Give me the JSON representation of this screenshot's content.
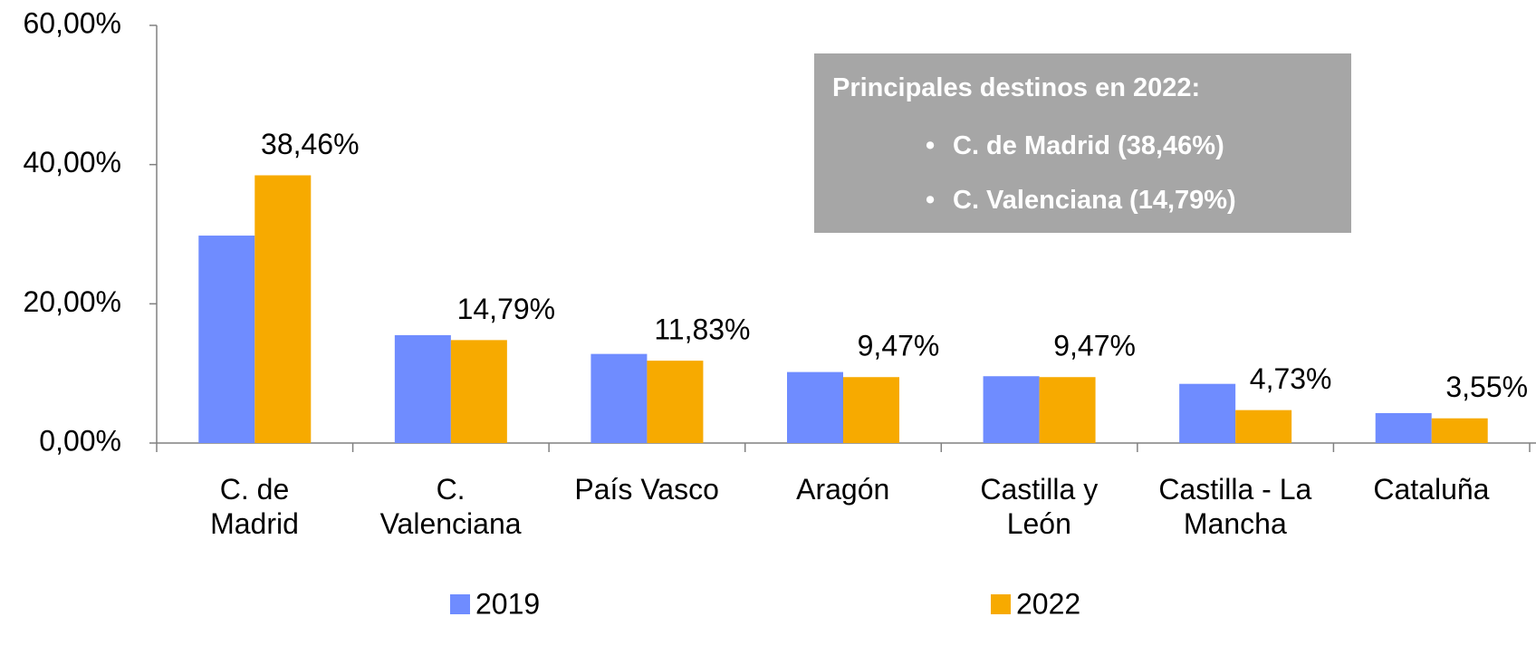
{
  "chart_data": {
    "type": "bar",
    "categories": [
      "C. de\nMadrid",
      "C.\nValenciana",
      "País Vasco",
      "Aragón",
      "Castilla y\nLeón",
      "Castilla - La\nMancha",
      "Cataluña"
    ],
    "series": [
      {
        "name": "2019",
        "color": "#6f8cff",
        "values": [
          29.8,
          15.5,
          12.8,
          10.2,
          9.6,
          8.5,
          4.3
        ]
      },
      {
        "name": "2022",
        "color": "#f7aa00",
        "values": [
          38.46,
          14.79,
          11.83,
          9.47,
          9.47,
          4.73,
          3.55
        ],
        "value_labels": [
          "38,46%",
          "14,79%",
          "11,83%",
          "9,47%",
          "9,47%",
          "4,73%",
          "3,55%"
        ]
      }
    ],
    "ylim": [
      0,
      60
    ],
    "yticks": [
      {
        "value": 0,
        "label": "0,00%"
      },
      {
        "value": 20,
        "label": "20,00%"
      },
      {
        "value": 40,
        "label": "40,00%"
      },
      {
        "value": 60,
        "label": "60,00%"
      }
    ],
    "annotation": {
      "title": "Principales destinos en 2022:",
      "items": [
        "C. de Madrid  (38,46%)",
        "C. Valenciana (14,79%)"
      ]
    },
    "legend": "bottom"
  }
}
